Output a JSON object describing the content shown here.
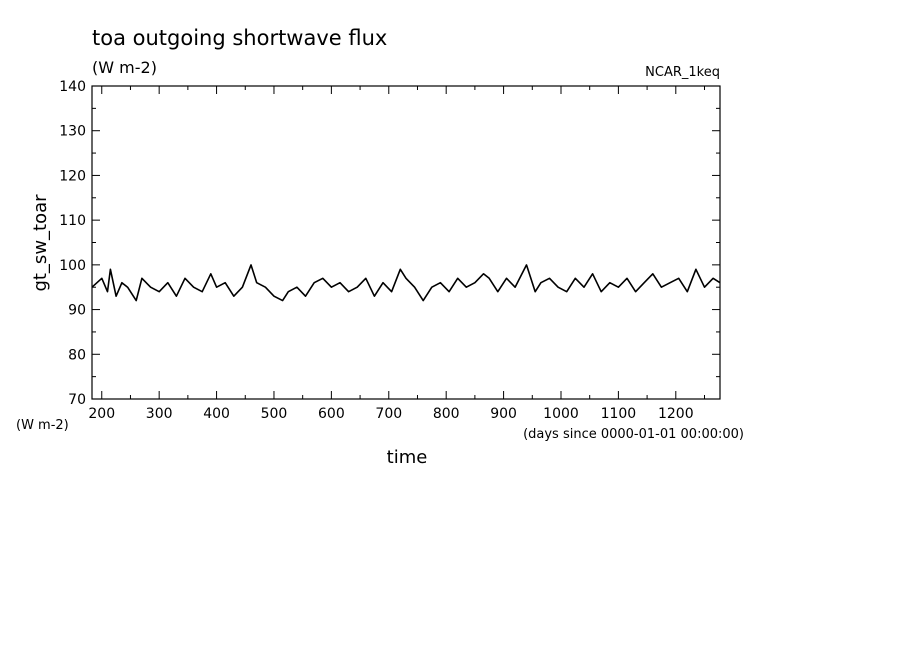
{
  "chart_data": {
    "type": "line",
    "title": "toa outgoing shortwave flux",
    "units": "(W m-2)",
    "dataset_label": "NCAR_1keq",
    "ylabel": "gt_sw_toar",
    "yunits": "(W m-2)",
    "xlabel": "time",
    "xunits": "(days since 0000-01-01 00:00:00)",
    "xlim": [
      183,
      1277
    ],
    "ylim": [
      70,
      140
    ],
    "xticks": [
      200,
      300,
      400,
      500,
      600,
      700,
      800,
      900,
      1000,
      1100,
      1200
    ],
    "yticks": [
      70,
      80,
      90,
      100,
      110,
      120,
      130,
      140
    ],
    "grid": false,
    "series": [
      {
        "x": [
          183,
          200,
          210,
          215,
          225,
          235,
          245,
          260,
          270,
          285,
          300,
          315,
          330,
          345,
          360,
          375,
          390,
          400,
          415,
          430,
          445,
          460,
          470,
          485,
          500,
          515,
          525,
          540,
          555,
          570,
          585,
          600,
          615,
          630,
          645,
          660,
          675,
          690,
          705,
          720,
          730,
          745,
          760,
          775,
          790,
          805,
          820,
          835,
          850,
          865,
          875,
          890,
          905,
          920,
          940,
          955,
          965,
          980,
          995,
          1010,
          1025,
          1040,
          1055,
          1070,
          1085,
          1100,
          1115,
          1130,
          1145,
          1160,
          1175,
          1190,
          1205,
          1220,
          1235,
          1250,
          1265,
          1277
        ],
        "y": [
          95,
          97,
          94,
          99,
          93,
          96,
          95,
          92,
          97,
          95,
          94,
          96,
          93,
          97,
          95,
          94,
          98,
          95,
          96,
          93,
          95,
          100,
          96,
          95,
          93,
          92,
          94,
          95,
          93,
          96,
          97,
          95,
          96,
          94,
          95,
          97,
          93,
          96,
          94,
          99,
          97,
          95,
          92,
          95,
          96,
          94,
          97,
          95,
          96,
          98,
          97,
          94,
          97,
          95,
          100,
          94,
          96,
          97,
          95,
          94,
          97,
          95,
          98,
          94,
          96,
          95,
          97,
          94,
          96,
          98,
          95,
          96,
          97,
          94,
          99,
          95,
          97,
          96
        ]
      }
    ]
  }
}
